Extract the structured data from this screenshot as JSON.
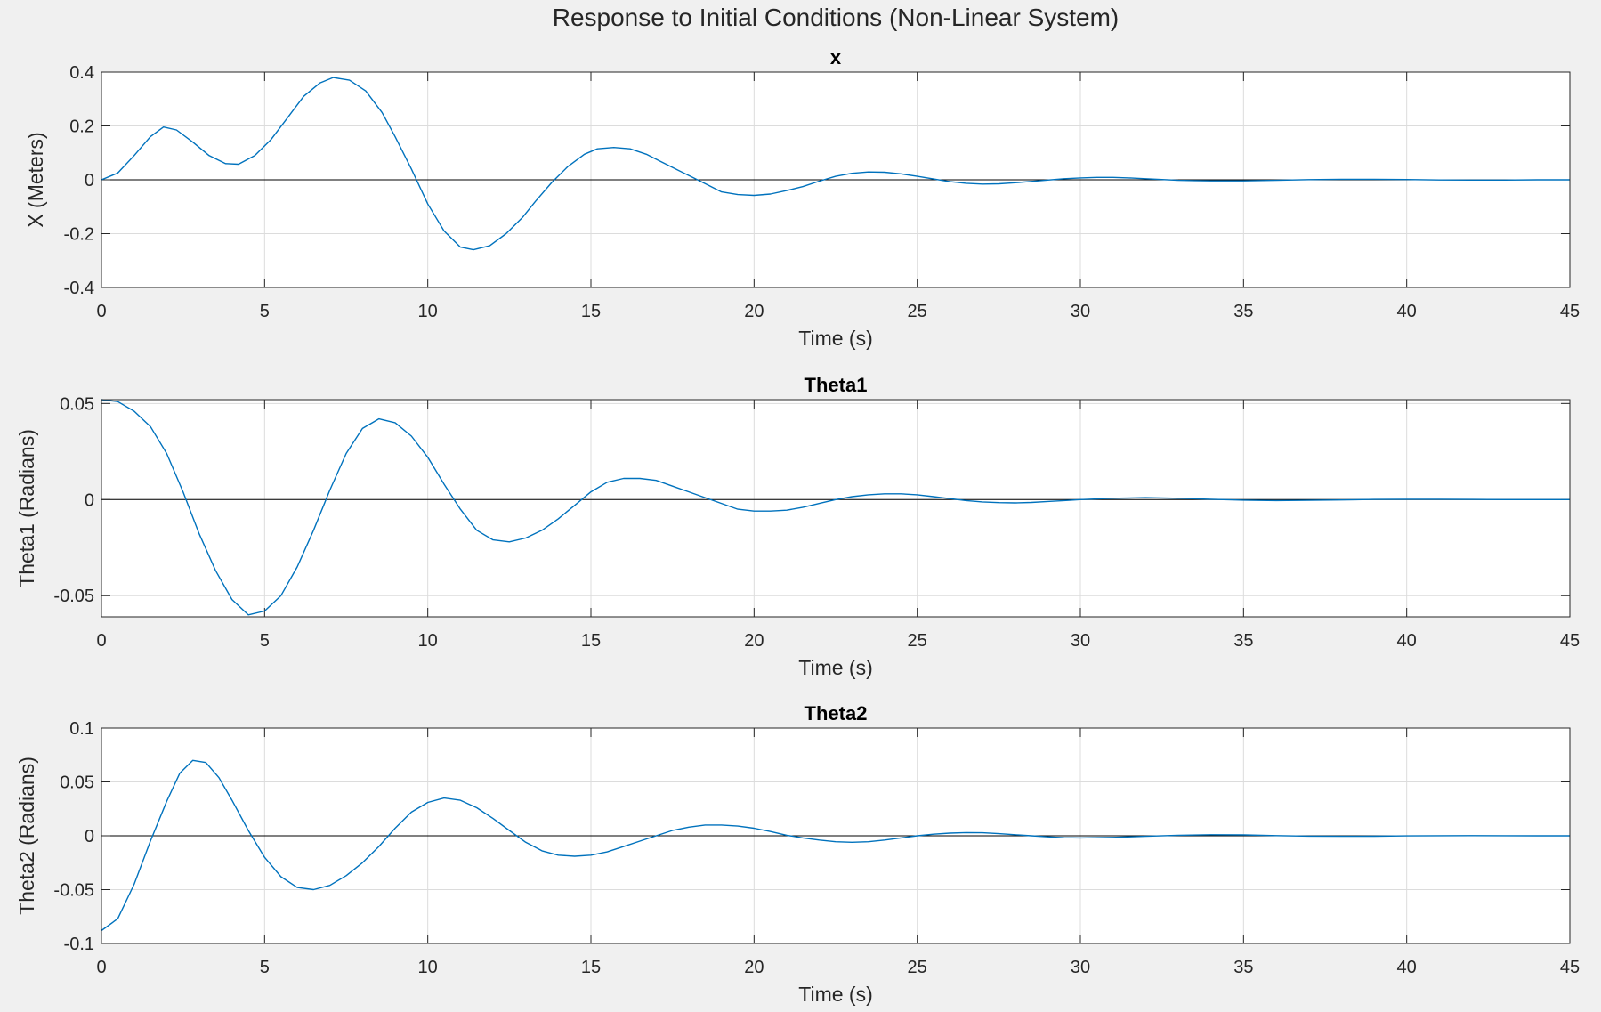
{
  "figure": {
    "title": "Response to Initial Conditions (Non-Linear System)",
    "background": "#f0f0f0",
    "axes_background": "#ffffff",
    "line_color": "#0072bd",
    "grid_color": "#dcdcdc",
    "zero_line_color": "#000000"
  },
  "chart_data": [
    {
      "type": "line",
      "title": "x",
      "xlabel": "Time (s)",
      "ylabel": "X (Meters)",
      "xlim": [
        0,
        45
      ],
      "ylim": [
        -0.4,
        0.4
      ],
      "xticks": [
        0,
        5,
        10,
        15,
        20,
        25,
        30,
        35,
        40,
        45
      ],
      "yticks": [
        -0.4,
        -0.2,
        0,
        0.2,
        0.4
      ],
      "xtick_labels": [
        "0",
        "5",
        "10",
        "15",
        "20",
        "25",
        "30",
        "35",
        "40",
        "45"
      ],
      "ytick_labels": [
        "-0.4",
        "-0.2",
        "0",
        "0.2",
        "0.4"
      ],
      "grid": true,
      "zero_line": true,
      "series": [
        {
          "x": [
            0,
            0.5,
            1.0,
            1.5,
            1.9,
            2.3,
            2.8,
            3.3,
            3.8,
            4.2,
            4.7,
            5.2,
            5.7,
            6.2,
            6.7,
            7.1,
            7.6,
            8.1,
            8.6,
            9.0,
            9.5,
            10.0,
            10.5,
            11.0,
            11.4,
            11.9,
            12.4,
            12.9,
            13.3,
            13.8,
            14.3,
            14.8,
            15.2,
            15.7,
            16.2,
            16.7,
            17.1,
            17.6,
            18.1,
            18.6,
            19.0,
            19.5,
            20.0,
            20.5,
            21.0,
            21.5,
            22.0,
            22.5,
            23.0,
            23.5,
            24.0,
            24.5,
            25.0,
            25.5,
            26.0,
            26.5,
            27.0,
            27.5,
            28.0,
            28.5,
            29.0,
            29.5,
            30.0,
            30.5,
            31.0,
            31.5,
            32.0,
            32.5,
            33.0,
            33.5,
            34.0,
            35.0,
            36.0,
            37.0,
            38.0,
            39.0,
            40.0,
            41.0,
            42.0,
            43.0,
            44.0,
            45.0
          ],
          "y": [
            0,
            0.025,
            0.09,
            0.16,
            0.196,
            0.185,
            0.14,
            0.09,
            0.06,
            0.058,
            0.09,
            0.15,
            0.23,
            0.31,
            0.36,
            0.38,
            0.37,
            0.33,
            0.25,
            0.16,
            0.04,
            -0.09,
            -0.19,
            -0.25,
            -0.26,
            -0.245,
            -0.2,
            -0.14,
            -0.08,
            -0.01,
            0.05,
            0.095,
            0.115,
            0.12,
            0.115,
            0.095,
            0.07,
            0.04,
            0.01,
            -0.02,
            -0.045,
            -0.055,
            -0.058,
            -0.053,
            -0.04,
            -0.025,
            -0.005,
            0.013,
            0.024,
            0.029,
            0.028,
            0.022,
            0.013,
            0.003,
            -0.007,
            -0.013,
            -0.016,
            -0.015,
            -0.011,
            -0.006,
            -0.001,
            0.004,
            0.007,
            0.009,
            0.009,
            0.007,
            0.004,
            0.001,
            -0.002,
            -0.003,
            -0.004,
            -0.004,
            -0.002,
            0.0005,
            0.002,
            0.002,
            0.001,
            -0.0005,
            -0.001,
            -0.001,
            0,
            0
          ]
        }
      ]
    },
    {
      "type": "line",
      "title": "Theta1",
      "xlabel": "Time (s)",
      "ylabel": "Theta1 (Radians)",
      "xlim": [
        0,
        45
      ],
      "ylim": [
        -0.061,
        0.052
      ],
      "xticks": [
        0,
        5,
        10,
        15,
        20,
        25,
        30,
        35,
        40,
        45
      ],
      "yticks": [
        -0.05,
        0,
        0.05
      ],
      "xtick_labels": [
        "0",
        "5",
        "10",
        "15",
        "20",
        "25",
        "30",
        "35",
        "40",
        "45"
      ],
      "ytick_labels": [
        "-0.05",
        "0",
        "0.05"
      ],
      "grid": true,
      "zero_line": true,
      "series": [
        {
          "x": [
            0,
            0.5,
            1.0,
            1.5,
            2.0,
            2.5,
            3.0,
            3.5,
            4.0,
            4.5,
            5.0,
            5.5,
            6.0,
            6.5,
            7.0,
            7.5,
            8.0,
            8.5,
            9.0,
            9.5,
            10.0,
            10.5,
            11.0,
            11.5,
            12.0,
            12.5,
            13.0,
            13.5,
            14.0,
            14.5,
            15.0,
            15.5,
            16.0,
            16.5,
            17.0,
            17.5,
            18.0,
            18.5,
            19.0,
            19.5,
            20.0,
            20.5,
            21.0,
            21.5,
            22.0,
            22.5,
            23.0,
            23.5,
            24.0,
            24.5,
            25.0,
            25.5,
            26.0,
            26.5,
            27.0,
            27.5,
            28.0,
            28.5,
            29.0,
            29.5,
            30.0,
            31.0,
            32.0,
            33.0,
            34.0,
            35.0,
            36.0,
            37.0,
            38.0,
            39.0,
            40.0,
            41.0,
            42.0,
            43.0,
            44.0,
            45.0
          ],
          "y": [
            0.052,
            0.051,
            0.046,
            0.038,
            0.024,
            0.004,
            -0.018,
            -0.037,
            -0.052,
            -0.06,
            -0.058,
            -0.05,
            -0.035,
            -0.016,
            0.005,
            0.024,
            0.037,
            0.042,
            0.04,
            0.033,
            0.022,
            0.008,
            -0.005,
            -0.016,
            -0.021,
            -0.022,
            -0.02,
            -0.016,
            -0.01,
            -0.003,
            0.004,
            0.009,
            0.011,
            0.011,
            0.01,
            0.007,
            0.004,
            0.001,
            -0.002,
            -0.005,
            -0.006,
            -0.006,
            -0.0055,
            -0.004,
            -0.002,
            0.0,
            0.0015,
            0.0025,
            0.003,
            0.003,
            0.0025,
            0.0015,
            0.0005,
            -0.0005,
            -0.0012,
            -0.0016,
            -0.0017,
            -0.0015,
            -0.001,
            -0.0005,
            0.0,
            0.0007,
            0.001,
            0.0007,
            0.0002,
            -0.0003,
            -0.0005,
            -0.0004,
            -0.0002,
            0.0001,
            0.0002,
            0.0002,
            0.0001,
            0,
            0,
            0
          ]
        }
      ]
    },
    {
      "type": "line",
      "title": "Theta2",
      "xlabel": "Time (s)",
      "ylabel": "Theta2 (Radians)",
      "xlim": [
        0,
        45
      ],
      "ylim": [
        -0.1,
        0.1
      ],
      "xticks": [
        0,
        5,
        10,
        15,
        20,
        25,
        30,
        35,
        40,
        45
      ],
      "yticks": [
        -0.1,
        -0.05,
        0,
        0.05,
        0.1
      ],
      "xtick_labels": [
        "0",
        "5",
        "10",
        "15",
        "20",
        "25",
        "30",
        "35",
        "40",
        "45"
      ],
      "ytick_labels": [
        "-0.1",
        "-0.05",
        "0",
        "0.05",
        "0.1"
      ],
      "grid": true,
      "zero_line": true,
      "series": [
        {
          "x": [
            0,
            0.5,
            1.0,
            1.5,
            2.0,
            2.4,
            2.8,
            3.2,
            3.6,
            4.0,
            4.5,
            5.0,
            5.5,
            6.0,
            6.5,
            7.0,
            7.5,
            8.0,
            8.5,
            9.0,
            9.5,
            10.0,
            10.5,
            11.0,
            11.5,
            12.0,
            12.5,
            13.0,
            13.5,
            14.0,
            14.5,
            15.0,
            15.5,
            16.0,
            16.5,
            17.0,
            17.5,
            18.0,
            18.5,
            19.0,
            19.5,
            20.0,
            20.5,
            21.0,
            21.5,
            22.0,
            22.5,
            23.0,
            23.5,
            24.0,
            24.5,
            25.0,
            25.5,
            26.0,
            26.5,
            27.0,
            27.5,
            28.0,
            28.5,
            29.0,
            29.5,
            30.0,
            31.0,
            32.0,
            33.0,
            34.0,
            35.0,
            36.0,
            37.0,
            38.0,
            39.0,
            40.0,
            41.0,
            42.0,
            43.0,
            44.0,
            45.0
          ],
          "y": [
            -0.088,
            -0.077,
            -0.045,
            -0.005,
            0.032,
            0.058,
            0.07,
            0.068,
            0.054,
            0.033,
            0.005,
            -0.02,
            -0.038,
            -0.048,
            -0.05,
            -0.046,
            -0.037,
            -0.025,
            -0.01,
            0.007,
            0.022,
            0.031,
            0.035,
            0.033,
            0.026,
            0.016,
            0.005,
            -0.006,
            -0.014,
            -0.018,
            -0.019,
            -0.018,
            -0.015,
            -0.01,
            -0.005,
            0.0,
            0.005,
            0.008,
            0.01,
            0.01,
            0.009,
            0.007,
            0.004,
            0.0005,
            -0.002,
            -0.004,
            -0.0055,
            -0.006,
            -0.0055,
            -0.004,
            -0.002,
            0.0,
            0.0015,
            0.0025,
            0.003,
            0.0028,
            0.002,
            0.001,
            0.0,
            -0.001,
            -0.0018,
            -0.002,
            -0.0015,
            -0.0005,
            0.0005,
            0.001,
            0.0008,
            0.0002,
            -0.0003,
            -0.0005,
            -0.0004,
            -0.0001,
            0.0001,
            0.0002,
            0.0001,
            0,
            0
          ]
        }
      ]
    }
  ]
}
